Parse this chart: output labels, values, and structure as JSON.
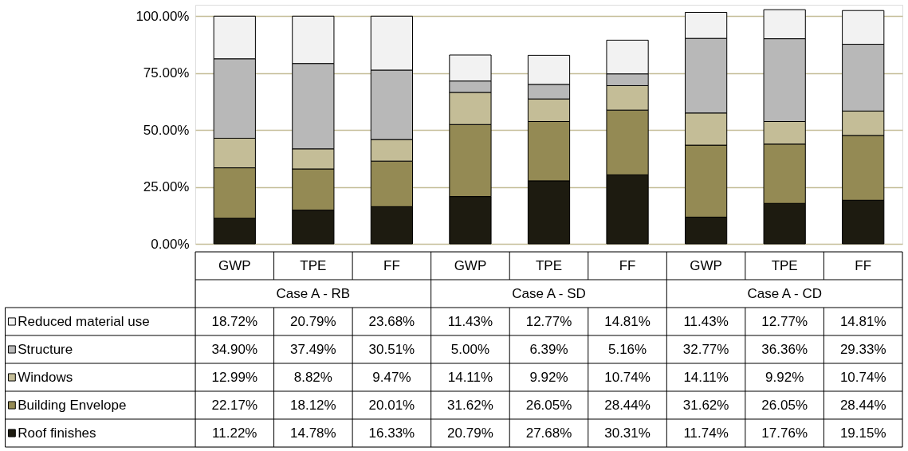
{
  "chart_data": {
    "type": "bar",
    "stacked": true,
    "categories": [
      "GWP",
      "TPE",
      "FF",
      "GWP",
      "TPE",
      "FF",
      "GWP",
      "TPE",
      "FF"
    ],
    "annotations": [
      "Case A - RB",
      "Case A - SD",
      "Case A - CD"
    ],
    "series": [
      {
        "name": "Roof finishes",
        "color": "#1d1b10",
        "values": [
          11.22,
          14.78,
          16.33,
          20.79,
          27.68,
          30.31,
          11.74,
          17.76,
          19.15
        ],
        "value_labels": [
          "11.22%",
          "14.78%",
          "16.33%",
          "20.79%",
          "27.68%",
          "30.31%",
          "11.74%",
          "17.76%",
          "19.15%"
        ]
      },
      {
        "name": "Building Envelope",
        "color": "#948a54",
        "values": [
          22.17,
          18.12,
          20.01,
          31.62,
          26.05,
          28.44,
          31.62,
          26.05,
          28.44
        ],
        "value_labels": [
          "22.17%",
          "18.12%",
          "20.01%",
          "31.62%",
          "26.05%",
          "28.44%",
          "31.62%",
          "26.05%",
          "28.44%"
        ]
      },
      {
        "name": "Windows",
        "color": "#c4bd97",
        "values": [
          12.99,
          8.82,
          9.47,
          14.11,
          9.92,
          10.74,
          14.11,
          9.92,
          10.74
        ],
        "value_labels": [
          "12.99%",
          "8.82%",
          "9.47%",
          "14.11%",
          "9.92%",
          "10.74%",
          "14.11%",
          "9.92%",
          "10.74%"
        ]
      },
      {
        "name": "Structure",
        "color": "#b8b8b8",
        "values": [
          34.9,
          37.49,
          30.51,
          5.0,
          6.39,
          5.16,
          32.77,
          36.36,
          29.33
        ],
        "value_labels": [
          "34.90%",
          "37.49%",
          "30.51%",
          "5.00%",
          "6.39%",
          "5.16%",
          "32.77%",
          "36.36%",
          "29.33%"
        ]
      },
      {
        "name": "Reduced material use",
        "color": "#f2f2f2",
        "values": [
          18.72,
          20.79,
          23.68,
          11.43,
          12.77,
          14.81,
          11.43,
          12.77,
          14.81
        ],
        "value_labels": [
          "18.72%",
          "20.79%",
          "23.68%",
          "11.43%",
          "12.77%",
          "14.81%",
          "11.43%",
          "12.77%",
          "14.81%"
        ]
      }
    ],
    "ylim": [
      0,
      105
    ],
    "yticks": [
      {
        "value": 0,
        "label": "0.00%"
      },
      {
        "value": 25,
        "label": "25.00%"
      },
      {
        "value": 50,
        "label": "50.00%"
      },
      {
        "value": 75,
        "label": "75.00%"
      },
      {
        "value": 100,
        "label": "100.00%"
      }
    ],
    "grid": "y",
    "legend": "bottom"
  }
}
